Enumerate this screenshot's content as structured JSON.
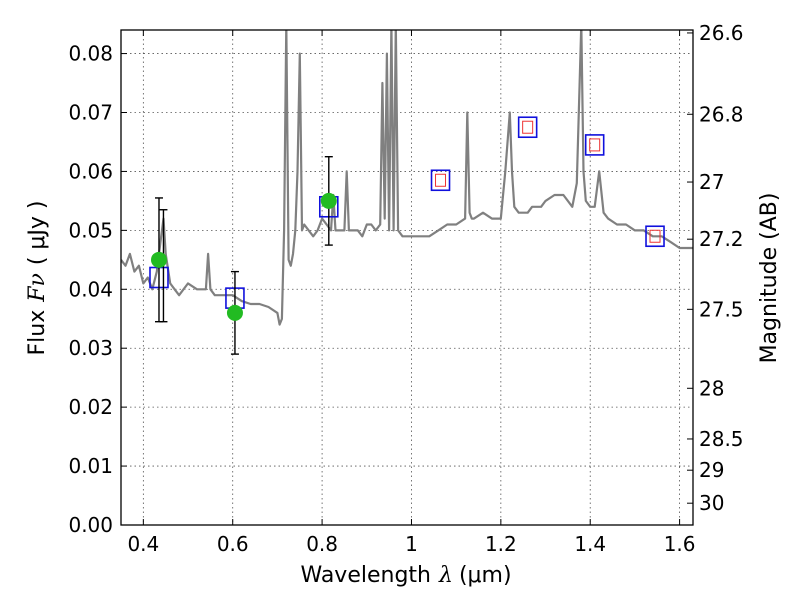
{
  "chart_data": {
    "type": "line",
    "xlabel_prefix": "Wavelength",
    "xlabel_symbol": "λ",
    "xlabel_unit": "(μm)",
    "ylabel_prefix": "Flux",
    "ylabel_symbol": "Fν",
    "ylabel_unit": "( μJy )",
    "y2label": "Magnitude (AB)",
    "xlim": [
      0.35,
      1.63
    ],
    "ylim": [
      0.0,
      0.084
    ],
    "grid": true,
    "x_ticks": [
      0.4,
      0.6,
      0.8,
      1.0,
      1.2,
      1.4,
      1.6
    ],
    "x_tick_labels": [
      "0.4",
      "0.6",
      "0.8",
      "1",
      "1.2",
      "1.4",
      "1.6"
    ],
    "y_ticks": [
      0.0,
      0.01,
      0.02,
      0.03,
      0.04,
      0.05,
      0.06,
      0.07,
      0.08
    ],
    "y_tick_labels": [
      "0.00",
      "0.01",
      "0.02",
      "0.03",
      "0.04",
      "0.05",
      "0.06",
      "0.07",
      "0.08"
    ],
    "y2_ticks": [
      {
        "label": "26.6",
        "flux": 0.0835
      },
      {
        "label": "26.8",
        "flux": 0.0697
      },
      {
        "label": "27",
        "flux": 0.0582
      },
      {
        "label": "27.2",
        "flux": 0.0485
      },
      {
        "label": "27.5",
        "flux": 0.0366
      },
      {
        "label": "28",
        "flux": 0.0232
      },
      {
        "label": "28.5",
        "flux": 0.0146
      },
      {
        "label": "29",
        "flux": 0.0093
      },
      {
        "label": "30",
        "flux": 0.0037
      }
    ],
    "colors": {
      "spectrum": "#808080",
      "photometry": "#22bb22",
      "model_box": "#1010dd",
      "model_inner": "#ee3333",
      "errorbar": "#000000",
      "grid": "#555555"
    },
    "series": [
      {
        "style": "spectrum",
        "x": [
          0.35,
          0.36,
          0.37,
          0.38,
          0.39,
          0.4,
          0.41,
          0.42,
          0.43,
          0.44,
          0.445,
          0.45,
          0.46,
          0.47,
          0.48,
          0.5,
          0.52,
          0.54,
          0.545,
          0.55,
          0.56,
          0.58,
          0.6,
          0.62,
          0.64,
          0.66,
          0.68,
          0.7,
          0.705,
          0.71,
          0.715,
          0.72,
          0.725,
          0.73,
          0.735,
          0.74,
          0.745,
          0.75,
          0.755,
          0.76,
          0.77,
          0.78,
          0.79,
          0.8,
          0.81,
          0.82,
          0.825,
          0.83,
          0.84,
          0.85,
          0.855,
          0.86,
          0.87,
          0.88,
          0.89,
          0.9,
          0.91,
          0.92,
          0.93,
          0.935,
          0.94,
          0.945,
          0.95,
          0.955,
          0.96,
          0.965,
          0.97,
          0.98,
          1.0,
          1.02,
          1.04,
          1.06,
          1.08,
          1.1,
          1.12,
          1.125,
          1.13,
          1.135,
          1.14,
          1.16,
          1.18,
          1.2,
          1.21,
          1.22,
          1.225,
          1.23,
          1.24,
          1.25,
          1.26,
          1.27,
          1.28,
          1.29,
          1.3,
          1.32,
          1.34,
          1.36,
          1.37,
          1.38,
          1.385,
          1.39,
          1.4,
          1.41,
          1.42,
          1.43,
          1.44,
          1.46,
          1.48,
          1.5,
          1.52,
          1.54,
          1.56,
          1.58,
          1.6,
          1.62,
          1.63
        ],
        "y": [
          0.045,
          0.044,
          0.046,
          0.043,
          0.044,
          0.041,
          0.042,
          0.04,
          0.043,
          0.049,
          0.052,
          0.046,
          0.041,
          0.04,
          0.039,
          0.041,
          0.04,
          0.04,
          0.046,
          0.04,
          0.039,
          0.039,
          0.039,
          0.038,
          0.0375,
          0.0375,
          0.037,
          0.036,
          0.034,
          0.035,
          0.05,
          0.085,
          0.045,
          0.044,
          0.046,
          0.05,
          0.06,
          0.08,
          0.05,
          0.051,
          0.05,
          0.049,
          0.05,
          0.052,
          0.051,
          0.05,
          0.056,
          0.05,
          0.05,
          0.05,
          0.06,
          0.05,
          0.05,
          0.05,
          0.049,
          0.051,
          0.051,
          0.05,
          0.051,
          0.075,
          0.052,
          0.08,
          0.05,
          0.085,
          0.05,
          0.085,
          0.05,
          0.049,
          0.049,
          0.049,
          0.049,
          0.05,
          0.051,
          0.051,
          0.052,
          0.07,
          0.053,
          0.052,
          0.052,
          0.053,
          0.052,
          0.052,
          0.06,
          0.07,
          0.06,
          0.054,
          0.053,
          0.053,
          0.053,
          0.054,
          0.054,
          0.054,
          0.055,
          0.056,
          0.056,
          0.054,
          0.058,
          0.085,
          0.06,
          0.055,
          0.054,
          0.054,
          0.06,
          0.053,
          0.052,
          0.051,
          0.051,
          0.05,
          0.05,
          0.049,
          0.049,
          0.048,
          0.047,
          0.047,
          0.047
        ]
      },
      {
        "style": "photometry",
        "x": [
          0.435,
          0.605,
          0.815
        ],
        "y": [
          0.045,
          0.036,
          0.055
        ],
        "yerr_low": [
          0.0345,
          0.029,
          0.0475
        ],
        "yerr_high": [
          0.0555,
          0.043,
          0.0625
        ],
        "extra_err_cap": {
          "x": 0.445,
          "y_low": 0.0345,
          "y_high": 0.0535
        }
      },
      {
        "style": "model-photometry",
        "x": [
          0.435,
          0.605,
          0.815,
          1.065,
          1.26,
          1.41,
          1.545
        ],
        "y": [
          0.042,
          0.0385,
          0.054,
          0.0585,
          0.0675,
          0.0645,
          0.049
        ]
      }
    ]
  }
}
